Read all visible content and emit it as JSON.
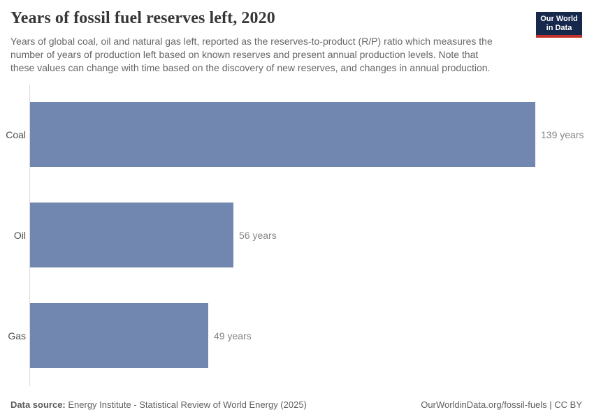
{
  "header": {
    "title": "Years of fossil fuel reserves left, 2020",
    "subtitle_lines": [
      "Years of global coal, oil and natural gas left, reported as the reserves-to-product (R/P) ratio which measures the",
      "number of years of production left based on known reserves and present annual production levels. Note that",
      "these values can change with time based on the discovery of new reserves, and changes in annual production."
    ],
    "logo": {
      "line1": "Our World",
      "line2": "in Data"
    }
  },
  "chart_data": {
    "type": "bar",
    "orientation": "horizontal",
    "title": "Years of fossil fuel reserves left, 2020",
    "categories": [
      "Coal",
      "Oil",
      "Gas"
    ],
    "values": [
      139,
      56,
      49
    ],
    "value_labels": [
      "139 years",
      "56 years",
      "49 years"
    ],
    "unit": "years",
    "xlabel": "",
    "ylabel": "",
    "xlim": [
      0,
      139
    ],
    "grid": false,
    "legend": false,
    "bar_color": "#7187af",
    "axis_color": "#d9d9d9"
  },
  "footer": {
    "source_label": "Data source:",
    "source_text": " Energy Institute - Statistical Review of World Energy (2025)",
    "right_text": "OurWorldinData.org/fossil-fuels | CC BY"
  },
  "colors": {
    "bar": "#7187af",
    "logo_navy": "#16294d",
    "logo_red": "#c2312b",
    "title_text": "#373737",
    "subtitle_text": "#666666",
    "category_label": "#4e4e4e",
    "value_label": "#858585"
  }
}
